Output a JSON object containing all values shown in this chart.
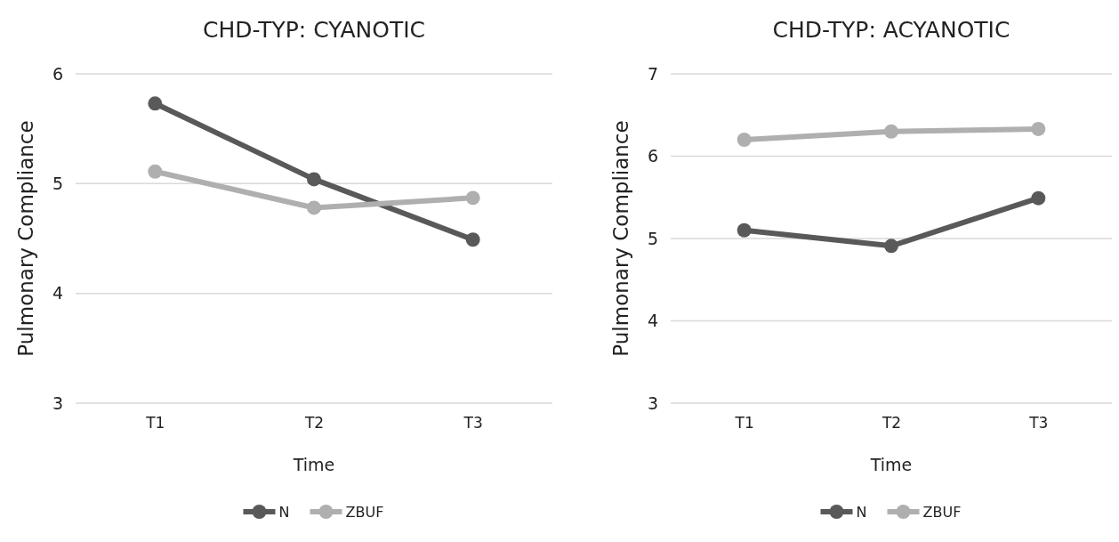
{
  "chart_data": [
    {
      "type": "line",
      "title": "CHD-TYP: CYANOTIC",
      "xlabel": "Time",
      "ylabel": "Pulmonary Compliance",
      "categories": [
        "T1",
        "T2",
        "T3"
      ],
      "ylim": [
        3,
        6
      ],
      "yticks": [
        3,
        4,
        5,
        6
      ],
      "grid": "y",
      "legend": "bottom",
      "marker": "circle",
      "series": [
        {
          "name": "N",
          "color": "#595959",
          "values": [
            5.73,
            5.04,
            4.49
          ]
        },
        {
          "name": "ZBUF",
          "color": "#afafaf",
          "values": [
            5.11,
            4.78,
            4.87
          ]
        }
      ]
    },
    {
      "type": "line",
      "title": "CHD-TYP: ACYANOTIC",
      "xlabel": "Time",
      "ylabel": "Pulmonary Compliance",
      "categories": [
        "T1",
        "T2",
        "T3"
      ],
      "ylim": [
        3,
        7
      ],
      "yticks": [
        3,
        4,
        5,
        6,
        7
      ],
      "grid": "y",
      "legend": "bottom",
      "marker": "circle",
      "series": [
        {
          "name": "N",
          "color": "#595959",
          "values": [
            5.1,
            4.91,
            5.49
          ]
        },
        {
          "name": "ZBUF",
          "color": "#afafaf",
          "values": [
            6.2,
            6.3,
            6.33
          ]
        }
      ]
    }
  ]
}
